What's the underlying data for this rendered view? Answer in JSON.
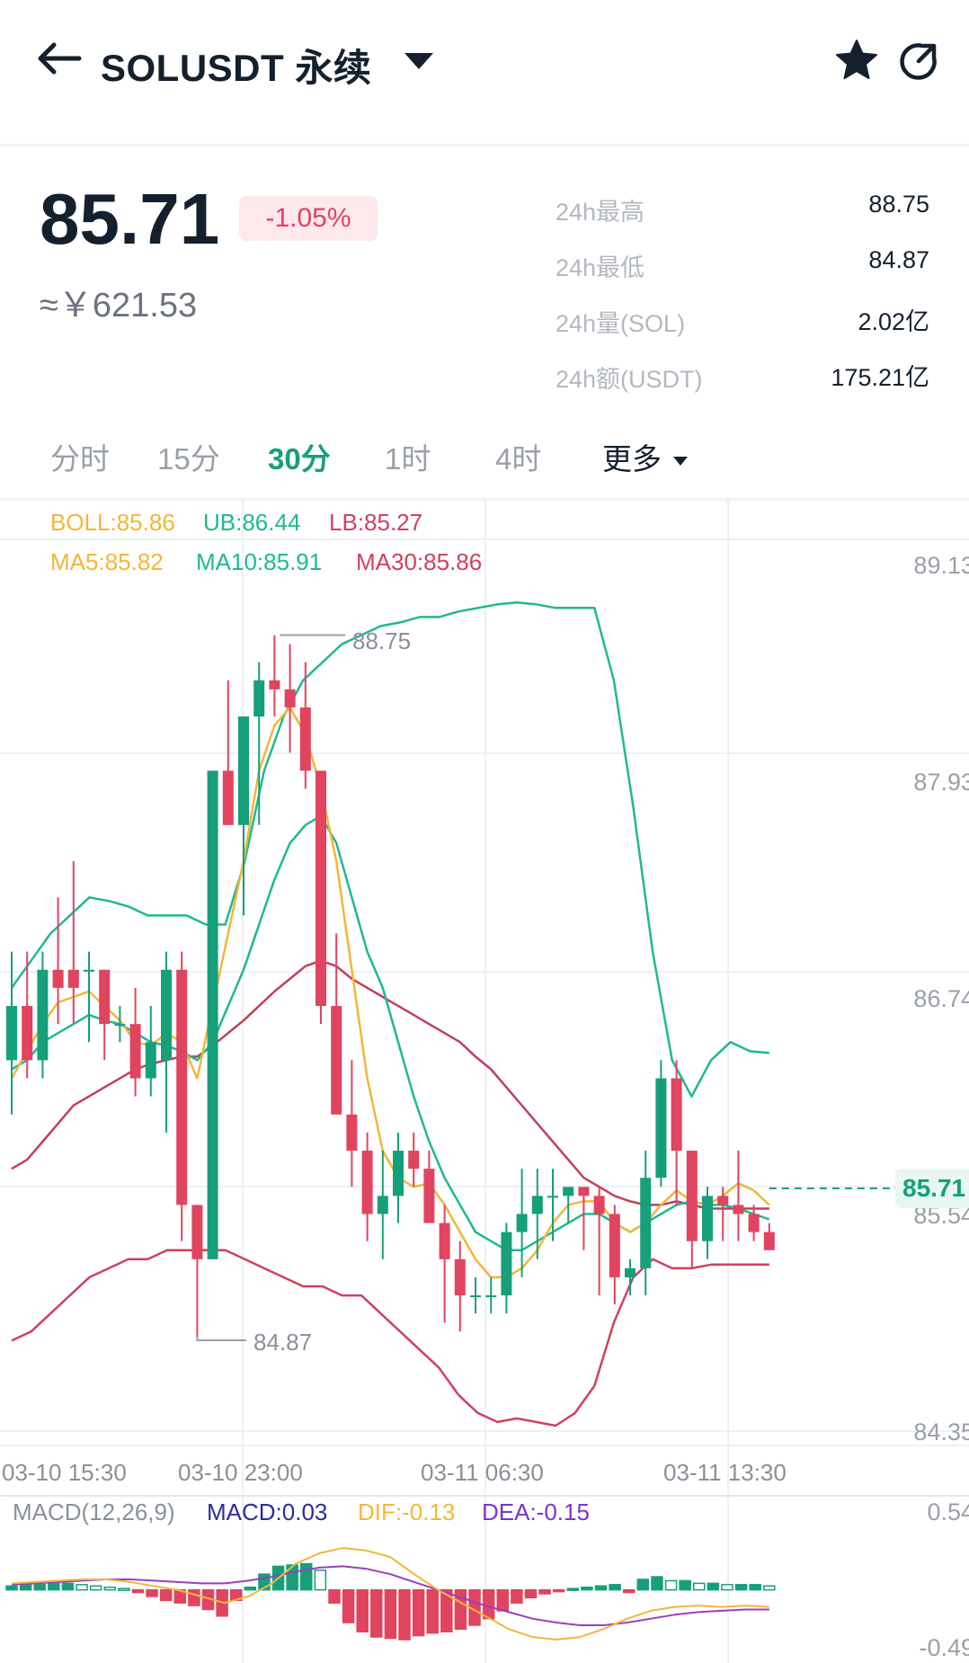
{
  "header": {
    "title": "SOLUSDT 永续",
    "icons": {
      "back": "back-arrow-icon",
      "dropdown": "caret-down-icon",
      "favorite": "star-icon",
      "share": "share-icon"
    }
  },
  "ticker": {
    "last_price": "85.71",
    "change_pct": "-1.05%",
    "cny_price": "≈￥621.53",
    "stats": [
      {
        "label": "24h最高",
        "value": "88.75"
      },
      {
        "label": "24h最低",
        "value": "84.87"
      },
      {
        "label": "24h量(SOL)",
        "value": "2.02亿"
      },
      {
        "label": "24h额(USDT)",
        "value": "175.21亿"
      }
    ],
    "colors": {
      "up": "#16a07a",
      "down": "#e0445f"
    }
  },
  "tabs": [
    {
      "label": "分时"
    },
    {
      "label": "15分"
    },
    {
      "label": "30分",
      "active": true
    },
    {
      "label": "1时"
    },
    {
      "label": "4时"
    },
    {
      "label": "更多"
    }
  ],
  "indicators": {
    "boll": "BOLL:85.86",
    "ub": "UB:86.44",
    "lb": "LB:85.27",
    "ma5": "MA5:85.82",
    "ma10": "MA10:85.91",
    "ma30": "MA30:85.86"
  },
  "macd_legend": {
    "name": "MACD(12,26,9)",
    "macd": "MACD:0.03",
    "dif": "DIF:-0.13",
    "dea": "DEA:-0.15"
  },
  "chart_data": {
    "type": "candlestick",
    "y_axis_labels": [
      "89.13",
      "87.93",
      "86.74",
      "85.54",
      "84.35"
    ],
    "ylim": [
      84.35,
      89.13
    ],
    "x_axis_labels": [
      "03-10 15:30",
      "03-10 23:00",
      "03-11 06:30",
      "03-11 13:30"
    ],
    "high_annotation": "88.75",
    "low_annotation": "84.87",
    "last_price_label": "85.71",
    "candles": [
      {
        "o": 86.4,
        "h": 87.0,
        "l": 86.1,
        "c": 86.7
      },
      {
        "o": 86.7,
        "h": 87.0,
        "l": 86.3,
        "c": 86.4
      },
      {
        "o": 86.4,
        "h": 87.0,
        "l": 86.3,
        "c": 86.9
      },
      {
        "o": 86.9,
        "h": 87.3,
        "l": 86.6,
        "c": 86.8
      },
      {
        "o": 86.9,
        "h": 87.5,
        "l": 86.6,
        "c": 86.8
      },
      {
        "o": 86.9,
        "h": 87.0,
        "l": 86.5,
        "c": 86.9
      },
      {
        "o": 86.9,
        "h": 86.9,
        "l": 86.4,
        "c": 86.6
      },
      {
        "o": 86.6,
        "h": 86.7,
        "l": 86.5,
        "c": 86.6
      },
      {
        "o": 86.6,
        "h": 86.8,
        "l": 86.2,
        "c": 86.3
      },
      {
        "o": 86.3,
        "h": 86.7,
        "l": 86.2,
        "c": 86.5
      },
      {
        "o": 86.4,
        "h": 87.0,
        "l": 86.0,
        "c": 86.9
      },
      {
        "o": 86.9,
        "h": 87.0,
        "l": 85.4,
        "c": 85.6
      },
      {
        "o": 85.6,
        "h": 85.6,
        "l": 84.87,
        "c": 85.3
      },
      {
        "o": 85.3,
        "h": 88.0,
        "l": 85.3,
        "c": 88.0
      },
      {
        "o": 88.0,
        "h": 88.5,
        "l": 87.7,
        "c": 87.7
      },
      {
        "o": 87.7,
        "h": 88.3,
        "l": 87.2,
        "c": 88.3
      },
      {
        "o": 88.3,
        "h": 88.6,
        "l": 87.7,
        "c": 88.5
      },
      {
        "o": 88.5,
        "h": 88.75,
        "l": 88.3,
        "c": 88.45
      },
      {
        "o": 88.45,
        "h": 88.7,
        "l": 88.1,
        "c": 88.35
      },
      {
        "o": 88.35,
        "h": 88.6,
        "l": 87.9,
        "c": 88.0
      },
      {
        "o": 88.0,
        "h": 88.0,
        "l": 86.6,
        "c": 86.7
      },
      {
        "o": 86.7,
        "h": 87.1,
        "l": 86.1,
        "c": 86.1
      },
      {
        "o": 86.1,
        "h": 86.4,
        "l": 85.7,
        "c": 85.9
      },
      {
        "o": 85.9,
        "h": 86.0,
        "l": 85.4,
        "c": 85.55
      },
      {
        "o": 85.55,
        "h": 85.9,
        "l": 85.3,
        "c": 85.65
      },
      {
        "o": 85.65,
        "h": 86.0,
        "l": 85.5,
        "c": 85.9
      },
      {
        "o": 85.9,
        "h": 86.0,
        "l": 85.7,
        "c": 85.8
      },
      {
        "o": 85.8,
        "h": 85.9,
        "l": 85.5,
        "c": 85.5
      },
      {
        "o": 85.5,
        "h": 85.6,
        "l": 84.95,
        "c": 85.3
      },
      {
        "o": 85.3,
        "h": 85.4,
        "l": 84.9,
        "c": 85.1
      },
      {
        "o": 85.1,
        "h": 85.2,
        "l": 85.0,
        "c": 85.1
      },
      {
        "o": 85.1,
        "h": 85.2,
        "l": 85.0,
        "c": 85.1
      },
      {
        "o": 85.1,
        "h": 85.5,
        "l": 85.0,
        "c": 85.45
      },
      {
        "o": 85.45,
        "h": 85.8,
        "l": 85.2,
        "c": 85.55
      },
      {
        "o": 85.55,
        "h": 85.8,
        "l": 85.3,
        "c": 85.65
      },
      {
        "o": 85.65,
        "h": 85.8,
        "l": 85.4,
        "c": 85.65
      },
      {
        "o": 85.65,
        "h": 85.7,
        "l": 85.5,
        "c": 85.7
      },
      {
        "o": 85.7,
        "h": 85.7,
        "l": 85.35,
        "c": 85.65
      },
      {
        "o": 85.65,
        "h": 85.7,
        "l": 85.1,
        "c": 85.55
      },
      {
        "o": 85.55,
        "h": 85.6,
        "l": 85.05,
        "c": 85.2
      },
      {
        "o": 85.2,
        "h": 85.3,
        "l": 85.1,
        "c": 85.25
      },
      {
        "o": 85.25,
        "h": 85.9,
        "l": 85.1,
        "c": 85.75
      },
      {
        "o": 85.75,
        "h": 86.4,
        "l": 85.7,
        "c": 86.3
      },
      {
        "o": 86.3,
        "h": 86.4,
        "l": 85.6,
        "c": 85.9
      },
      {
        "o": 85.9,
        "h": 85.9,
        "l": 85.25,
        "c": 85.4
      },
      {
        "o": 85.4,
        "h": 85.7,
        "l": 85.3,
        "c": 85.65
      },
      {
        "o": 85.65,
        "h": 85.7,
        "l": 85.4,
        "c": 85.6
      },
      {
        "o": 85.6,
        "h": 85.9,
        "l": 85.4,
        "c": 85.55
      },
      {
        "o": 85.55,
        "h": 85.6,
        "l": 85.4,
        "c": 85.45
      },
      {
        "o": 85.45,
        "h": 85.5,
        "l": 85.35,
        "c": 85.35
      }
    ],
    "ma5": [
      86.3,
      86.45,
      86.6,
      86.72,
      86.75,
      86.78,
      86.7,
      86.62,
      86.5,
      86.48,
      86.55,
      86.5,
      86.3,
      86.7,
      87.1,
      87.5,
      88.0,
      88.25,
      88.35,
      88.2,
      87.9,
      87.5,
      86.9,
      86.3,
      85.9,
      85.75,
      85.7,
      85.72,
      85.6,
      85.45,
      85.3,
      85.2,
      85.2,
      85.25,
      85.35,
      85.5,
      85.6,
      85.62,
      85.62,
      85.5,
      85.45,
      85.5,
      85.6,
      85.68,
      85.62,
      85.6,
      85.65,
      85.72,
      85.68,
      85.6
    ],
    "ma10": [
      86.35,
      86.4,
      86.5,
      86.55,
      86.6,
      86.65,
      86.62,
      86.6,
      86.55,
      86.5,
      86.48,
      86.45,
      86.4,
      86.5,
      86.7,
      86.9,
      87.15,
      87.4,
      87.6,
      87.7,
      87.75,
      87.6,
      87.3,
      87.0,
      86.8,
      86.5,
      86.2,
      85.95,
      85.75,
      85.6,
      85.45,
      85.4,
      85.35,
      85.35,
      85.4,
      85.45,
      85.5,
      85.55,
      85.55,
      85.5,
      85.45,
      85.5,
      85.55,
      85.6,
      85.62,
      85.6,
      85.6,
      85.58,
      85.55,
      85.52
    ],
    "ma30": [
      85.8,
      85.85,
      85.95,
      86.05,
      86.15,
      86.2,
      86.25,
      86.3,
      86.35,
      86.38,
      86.4,
      86.42,
      86.42,
      86.48,
      86.55,
      86.62,
      86.7,
      86.78,
      86.85,
      86.92,
      86.95,
      86.92,
      86.85,
      86.8,
      86.75,
      86.7,
      86.65,
      86.6,
      86.55,
      86.5,
      86.42,
      86.35,
      86.25,
      86.15,
      86.05,
      85.95,
      85.85,
      85.75,
      85.7,
      85.65,
      85.62,
      85.6,
      85.6,
      85.62,
      85.6,
      85.58,
      85.58,
      85.58,
      85.58,
      85.58
    ],
    "boll_upper": [
      86.8,
      86.95,
      87.1,
      87.2,
      87.3,
      87.28,
      87.25,
      87.2,
      87.2,
      87.2,
      87.15,
      87.15,
      87.5,
      88.0,
      88.3,
      88.5,
      88.6,
      88.7,
      88.75,
      88.8,
      88.82,
      88.85,
      88.85,
      88.88,
      88.9,
      88.92,
      88.93,
      88.92,
      88.9,
      88.9,
      88.9,
      88.5,
      87.8,
      87.0,
      86.4,
      86.2,
      86.4,
      86.5,
      86.45,
      86.44
    ],
    "boll_lower": [
      84.85,
      84.9,
      85.0,
      85.1,
      85.2,
      85.25,
      85.3,
      85.3,
      85.35,
      85.35,
      85.35,
      85.35,
      85.3,
      85.25,
      85.2,
      85.15,
      85.15,
      85.1,
      85.1,
      85.0,
      84.9,
      84.8,
      84.7,
      84.55,
      84.45,
      84.4,
      84.42,
      84.4,
      84.38,
      84.45,
      84.6,
      84.95,
      85.2,
      85.3,
      85.25,
      85.25,
      85.27,
      85.27,
      85.27,
      85.27
    ],
    "macd": {
      "ylim": [
        -0.49,
        0.54
      ],
      "y_axis_labels": [
        "0.54",
        "-0.49"
      ],
      "hist": [
        0.03,
        0.04,
        0.04,
        0.05,
        0.05,
        0.04,
        0.03,
        0.02,
        0.01,
        -0.02,
        -0.05,
        -0.08,
        -0.1,
        -0.12,
        -0.15,
        -0.2,
        -0.08,
        0.02,
        0.12,
        0.18,
        0.19,
        0.2,
        0.15,
        -0.1,
        -0.25,
        -0.32,
        -0.36,
        -0.37,
        -0.38,
        -0.35,
        -0.33,
        -0.32,
        -0.3,
        -0.27,
        -0.22,
        -0.16,
        -0.1,
        -0.06,
        -0.03,
        -0.01,
        0.01,
        0.02,
        0.03,
        0.04,
        -0.02,
        0.08,
        0.1,
        0.07,
        0.07,
        0.05,
        0.05,
        0.04,
        0.04,
        0.04,
        0.03
      ],
      "dif": [
        0.05,
        0.06,
        0.07,
        0.08,
        0.08,
        0.06,
        0.03,
        0.0,
        -0.05,
        -0.1,
        -0.05,
        0.05,
        0.2,
        0.28,
        0.32,
        0.3,
        0.25,
        0.12,
        0.0,
        -0.1,
        -0.2,
        -0.3,
        -0.36,
        -0.38,
        -0.36,
        -0.3,
        -0.22,
        -0.16,
        -0.13,
        -0.12,
        -0.13,
        -0.12,
        -0.13
      ],
      "dea": [
        0.04,
        0.05,
        0.06,
        0.07,
        0.08,
        0.08,
        0.07,
        0.06,
        0.05,
        0.05,
        0.07,
        0.1,
        0.14,
        0.17,
        0.18,
        0.16,
        0.12,
        0.06,
        0.0,
        -0.06,
        -0.12,
        -0.17,
        -0.22,
        -0.25,
        -0.27,
        -0.27,
        -0.25,
        -0.22,
        -0.19,
        -0.17,
        -0.16,
        -0.15,
        -0.15
      ]
    }
  }
}
